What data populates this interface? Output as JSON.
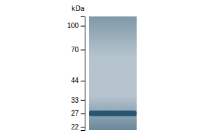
{
  "chart_data": {
    "type": "gel",
    "ylabel": "kDa",
    "log": "y",
    "ylim": [
      21,
      115
    ],
    "yticks": [
      100,
      70,
      44,
      33,
      27,
      22
    ],
    "values": [
      27
    ],
    "color": "#2a5570",
    "tick_labels": "y",
    "grid": false
  }
}
